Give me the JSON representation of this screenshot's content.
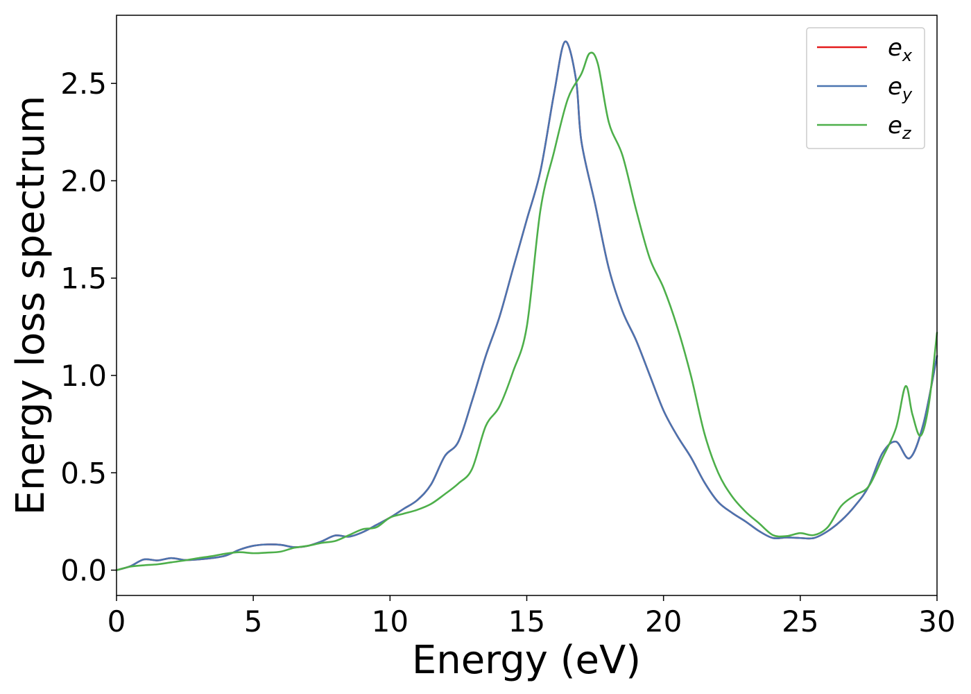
{
  "chart_data": {
    "type": "line",
    "title": "",
    "xlabel": "Energy (eV)",
    "ylabel": "Energy loss spectrum",
    "xlim": [
      0,
      30
    ],
    "ylim": [
      -0.13,
      2.85
    ],
    "xticks": [
      0,
      5,
      10,
      15,
      20,
      25,
      30
    ],
    "xtick_labels": [
      "0",
      "5",
      "10",
      "15",
      "20",
      "25",
      "30"
    ],
    "yticks": [
      0.0,
      0.5,
      1.0,
      1.5,
      2.0,
      2.5
    ],
    "ytick_labels": [
      "0.0",
      "0.5",
      "1.0",
      "1.5",
      "2.0",
      "2.5"
    ],
    "grid": false,
    "legend": {
      "position": "top-right"
    },
    "series": [
      {
        "name": "e_x",
        "legend_base": "e",
        "legend_sub": "x",
        "color": "#e41a1c",
        "points": [
          [
            0,
            0
          ],
          [
            0.5,
            0.02
          ],
          [
            1,
            0.055
          ],
          [
            1.5,
            0.05
          ],
          [
            2,
            0.062
          ],
          [
            2.5,
            0.052
          ],
          [
            3,
            0.055
          ],
          [
            3.5,
            0.062
          ],
          [
            4,
            0.075
          ],
          [
            4.5,
            0.105
          ],
          [
            5,
            0.125
          ],
          [
            5.5,
            0.132
          ],
          [
            6,
            0.13
          ],
          [
            6.5,
            0.118
          ],
          [
            7,
            0.125
          ],
          [
            7.5,
            0.148
          ],
          [
            8,
            0.178
          ],
          [
            8.5,
            0.172
          ],
          [
            9,
            0.195
          ],
          [
            9.5,
            0.232
          ],
          [
            10,
            0.27
          ],
          [
            10.5,
            0.315
          ],
          [
            11,
            0.36
          ],
          [
            11.5,
            0.44
          ],
          [
            12,
            0.585
          ],
          [
            12.5,
            0.66
          ],
          [
            13,
            0.87
          ],
          [
            13.5,
            1.1
          ],
          [
            14,
            1.3
          ],
          [
            14.5,
            1.55
          ],
          [
            15,
            1.8
          ],
          [
            15.5,
            2.05
          ],
          [
            16,
            2.45
          ],
          [
            16.4,
            2.715
          ],
          [
            16.8,
            2.52
          ],
          [
            17,
            2.2
          ],
          [
            17.5,
            1.88
          ],
          [
            18,
            1.55
          ],
          [
            18.5,
            1.33
          ],
          [
            19,
            1.18
          ],
          [
            19.5,
            1.0
          ],
          [
            20,
            0.82
          ],
          [
            20.5,
            0.69
          ],
          [
            21,
            0.58
          ],
          [
            21.5,
            0.45
          ],
          [
            22,
            0.35
          ],
          [
            22.5,
            0.295
          ],
          [
            23,
            0.25
          ],
          [
            23.5,
            0.2
          ],
          [
            24,
            0.165
          ],
          [
            24.5,
            0.168
          ],
          [
            25,
            0.165
          ],
          [
            25.5,
            0.165
          ],
          [
            26,
            0.2
          ],
          [
            26.5,
            0.255
          ],
          [
            27,
            0.33
          ],
          [
            27.5,
            0.43
          ],
          [
            28,
            0.6
          ],
          [
            28.5,
            0.66
          ],
          [
            29,
            0.575
          ],
          [
            29.5,
            0.75
          ],
          [
            30,
            1.1
          ]
        ]
      },
      {
        "name": "e_y",
        "legend_base": "e",
        "legend_sub": "y",
        "color": "#4a74b0",
        "points": [
          [
            0,
            0
          ],
          [
            0.5,
            0.02
          ],
          [
            1,
            0.055
          ],
          [
            1.5,
            0.05
          ],
          [
            2,
            0.062
          ],
          [
            2.5,
            0.052
          ],
          [
            3,
            0.055
          ],
          [
            3.5,
            0.062
          ],
          [
            4,
            0.075
          ],
          [
            4.5,
            0.105
          ],
          [
            5,
            0.125
          ],
          [
            5.5,
            0.132
          ],
          [
            6,
            0.13
          ],
          [
            6.5,
            0.118
          ],
          [
            7,
            0.125
          ],
          [
            7.5,
            0.148
          ],
          [
            8,
            0.178
          ],
          [
            8.5,
            0.172
          ],
          [
            9,
            0.195
          ],
          [
            9.5,
            0.232
          ],
          [
            10,
            0.27
          ],
          [
            10.5,
            0.315
          ],
          [
            11,
            0.36
          ],
          [
            11.5,
            0.44
          ],
          [
            12,
            0.585
          ],
          [
            12.5,
            0.66
          ],
          [
            13,
            0.87
          ],
          [
            13.5,
            1.1
          ],
          [
            14,
            1.3
          ],
          [
            14.5,
            1.55
          ],
          [
            15,
            1.8
          ],
          [
            15.5,
            2.05
          ],
          [
            16,
            2.45
          ],
          [
            16.4,
            2.715
          ],
          [
            16.8,
            2.52
          ],
          [
            17,
            2.2
          ],
          [
            17.5,
            1.88
          ],
          [
            18,
            1.55
          ],
          [
            18.5,
            1.33
          ],
          [
            19,
            1.18
          ],
          [
            19.5,
            1.0
          ],
          [
            20,
            0.82
          ],
          [
            20.5,
            0.69
          ],
          [
            21,
            0.58
          ],
          [
            21.5,
            0.45
          ],
          [
            22,
            0.35
          ],
          [
            22.5,
            0.295
          ],
          [
            23,
            0.25
          ],
          [
            23.5,
            0.2
          ],
          [
            24,
            0.165
          ],
          [
            24.5,
            0.168
          ],
          [
            25,
            0.165
          ],
          [
            25.5,
            0.165
          ],
          [
            26,
            0.2
          ],
          [
            26.5,
            0.255
          ],
          [
            27,
            0.33
          ],
          [
            27.5,
            0.43
          ],
          [
            28,
            0.6
          ],
          [
            28.5,
            0.66
          ],
          [
            29,
            0.575
          ],
          [
            29.5,
            0.75
          ],
          [
            30,
            1.1
          ]
        ]
      },
      {
        "name": "e_z",
        "legend_base": "e",
        "legend_sub": "z",
        "color": "#4daf4a",
        "points": [
          [
            0,
            0
          ],
          [
            0.5,
            0.018
          ],
          [
            1,
            0.025
          ],
          [
            1.5,
            0.03
          ],
          [
            2,
            0.04
          ],
          [
            2.5,
            0.05
          ],
          [
            3,
            0.062
          ],
          [
            3.5,
            0.072
          ],
          [
            4,
            0.085
          ],
          [
            4.5,
            0.092
          ],
          [
            5,
            0.087
          ],
          [
            5.5,
            0.09
          ],
          [
            6,
            0.095
          ],
          [
            6.5,
            0.115
          ],
          [
            7,
            0.125
          ],
          [
            7.5,
            0.14
          ],
          [
            8,
            0.15
          ],
          [
            8.5,
            0.18
          ],
          [
            9,
            0.21
          ],
          [
            9.5,
            0.22
          ],
          [
            10,
            0.27
          ],
          [
            10.5,
            0.29
          ],
          [
            11,
            0.31
          ],
          [
            11.5,
            0.34
          ],
          [
            12,
            0.39
          ],
          [
            12.5,
            0.445
          ],
          [
            13,
            0.52
          ],
          [
            13.5,
            0.74
          ],
          [
            14,
            0.84
          ],
          [
            14.5,
            1.02
          ],
          [
            15,
            1.25
          ],
          [
            15.5,
            1.85
          ],
          [
            16,
            2.15
          ],
          [
            16.5,
            2.42
          ],
          [
            17,
            2.55
          ],
          [
            17.3,
            2.655
          ],
          [
            17.6,
            2.6
          ],
          [
            18,
            2.3
          ],
          [
            18.5,
            2.13
          ],
          [
            19,
            1.85
          ],
          [
            19.5,
            1.6
          ],
          [
            20,
            1.45
          ],
          [
            20.5,
            1.25
          ],
          [
            21,
            1.0
          ],
          [
            21.5,
            0.7
          ],
          [
            22,
            0.5
          ],
          [
            22.5,
            0.38
          ],
          [
            23,
            0.3
          ],
          [
            23.5,
            0.24
          ],
          [
            24,
            0.18
          ],
          [
            24.5,
            0.175
          ],
          [
            25,
            0.19
          ],
          [
            25.5,
            0.18
          ],
          [
            26,
            0.22
          ],
          [
            26.5,
            0.33
          ],
          [
            27,
            0.385
          ],
          [
            27.5,
            0.43
          ],
          [
            28,
            0.575
          ],
          [
            28.5,
            0.73
          ],
          [
            28.85,
            0.945
          ],
          [
            29.1,
            0.8
          ],
          [
            29.4,
            0.69
          ],
          [
            29.7,
            0.85
          ],
          [
            30,
            1.22
          ]
        ]
      }
    ]
  }
}
